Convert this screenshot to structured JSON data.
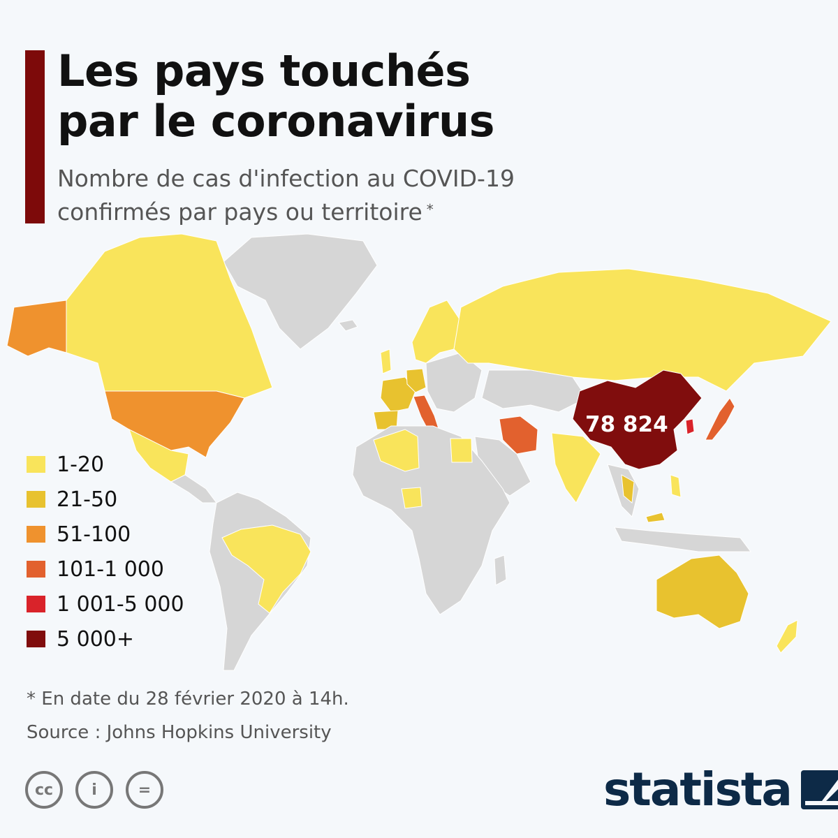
{
  "title": {
    "line1": "Les pays touchés",
    "line2": "par le coronavirus"
  },
  "subtitle": {
    "line1": "Nombre de cas d'infection au COVID-19",
    "line2": "confirmés par pays ou territoire",
    "marker": "*"
  },
  "map": {
    "highlight_label": "78 824",
    "colors": {
      "no_data": "#d6d6d6",
      "c1_20": "#f9e45b",
      "c21_50": "#e8c22f",
      "c51_100": "#ef922e",
      "c101_1000": "#e2612e",
      "c1001_5000": "#d9232a",
      "c5000plus": "#800d0d",
      "ocean": "#f5f8fb"
    }
  },
  "legend": [
    {
      "label": "1-20",
      "color": "#f9e45b"
    },
    {
      "label": "21-50",
      "color": "#e8c22f"
    },
    {
      "label": "51-100",
      "color": "#ef922e"
    },
    {
      "label": "101-1 000",
      "color": "#e2612e"
    },
    {
      "label": "1 001-5 000",
      "color": "#d9232a"
    },
    {
      "label": "5 000+",
      "color": "#800d0d"
    }
  ],
  "footnote": "* En date du 28 février 2020 à 14h.",
  "source": "Source : Johns Hopkins University",
  "license_icons": [
    {
      "name": "cc-icon",
      "glyph": "cc"
    },
    {
      "name": "by-icon",
      "glyph": "i"
    },
    {
      "name": "nd-icon",
      "glyph": "="
    }
  ],
  "brand": {
    "name": "statista",
    "color": "#0d2a47"
  }
}
